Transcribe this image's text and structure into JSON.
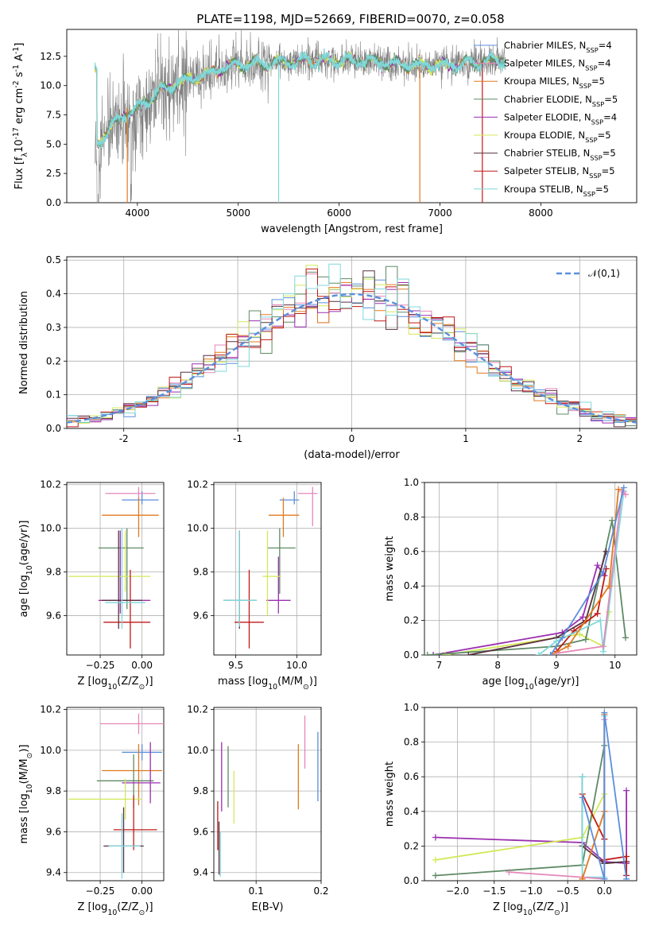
{
  "figure": {
    "title": "PLATE=1198, MJD=52669, FIBERID=0070, z=0.058"
  },
  "models": [
    {
      "name": "Chabrier MILES, N$_{SSP}$=4",
      "color": "#5b8fdc"
    },
    {
      "name": "Salpeter MILES, N$_{SSP}$=4",
      "color": "#e587b9"
    },
    {
      "name": "Kroupa MILES, N$_{SSP}$=5",
      "color": "#e07a1f"
    },
    {
      "name": "Chabrier ELODIE, N$_{SSP}$=5",
      "color": "#5f8a66"
    },
    {
      "name": "Salpeter ELODIE, N$_{SSP}$=4",
      "color": "#9b2fb0"
    },
    {
      "name": "Kroupa ELODIE, N$_{SSP}$=5",
      "color": "#d4e85a"
    },
    {
      "name": "Chabrier STELIB, N$_{SSP}$=5",
      "color": "#5a3040"
    },
    {
      "name": "Salpeter STELIB, N$_{SSP}$=5",
      "color": "#c01818"
    },
    {
      "name": "Kroupa STELIB, N$_{SSP}$=5",
      "color": "#7fd8dc"
    }
  ],
  "chart_data": [
    {
      "id": "spectrum",
      "type": "line",
      "xlabel": "wavelength [Angstrom, rest frame]",
      "ylabel": "Flux [f$_\\lambda$10$^{-17}$ erg cm$^{-2}$ s$^{-1}$ A$^{-1}$]",
      "xlim": [
        3300,
        8950
      ],
      "ylim": [
        0,
        14.8
      ],
      "xticks": [
        4000,
        5000,
        6000,
        7000,
        8000
      ],
      "yticks": [
        0.0,
        2.5,
        5.0,
        7.5,
        10.0,
        12.5
      ],
      "ytick_labels": [
        "0.0",
        "2.5",
        "5.0",
        "7.5",
        "10.0",
        "12.5"
      ],
      "data_color": "#808080",
      "continuum": {
        "x": [
          3600,
          3700,
          3850,
          3950,
          4050,
          4200,
          4350,
          4500,
          4700,
          4850,
          5000,
          5200,
          5500,
          5800,
          6100,
          6400,
          6800,
          7200,
          7600,
          8000,
          8400,
          8900
        ],
        "y": [
          5.0,
          6.1,
          7.5,
          7.7,
          8.4,
          9.5,
          10.0,
          10.5,
          11.0,
          11.5,
          11.8,
          11.9,
          12.0,
          12.2,
          12.1,
          12.0,
          11.7,
          11.8,
          12.2,
          11.8,
          11.4,
          11.1
        ]
      },
      "drop_lines": [
        {
          "x": 3900,
          "y": 8.1,
          "color": "#e07a1f"
        },
        {
          "x": 5400,
          "y": 11.9,
          "color": "#7fd8dc"
        },
        {
          "x": 6800,
          "y": 11.6,
          "color": "#e07a1f"
        },
        {
          "x": 7420,
          "y": 12.1,
          "color": "#c01818"
        }
      ],
      "legend": "upper right"
    },
    {
      "id": "residuals",
      "type": "histogram",
      "xlabel": "(data-model)/error",
      "ylabel": "Normed distribution",
      "xlim": [
        -2.5,
        2.5
      ],
      "ylim": [
        0,
        0.51
      ],
      "xticks": [
        -2,
        -1,
        0,
        1,
        2
      ],
      "yticks": [
        0.0,
        0.1,
        0.2,
        0.3,
        0.4,
        0.5
      ],
      "ytick_labels": [
        "0.0",
        "0.1",
        "0.2",
        "0.3",
        "0.4",
        "0.5"
      ],
      "bin_width": 0.1,
      "reference_curve": {
        "name": "$\\mathcal{N}(0,1)$",
        "color": "#5b8fdc",
        "style": "dashed"
      },
      "legend": "upper right"
    },
    {
      "id": "age_vs_Z",
      "type": "errorbar",
      "xlabel": "Z [log$_{10}$(Z/Z$_\\odot$)]",
      "ylabel": "age  [log$_{10}$(age/yr)]",
      "xlim": [
        -0.45,
        0.13
      ],
      "ylim": [
        9.42,
        10.21
      ],
      "xticks": [
        -0.25,
        0.0
      ],
      "xtick_labels": [
        "−0.25",
        "0.00"
      ],
      "yticks": [
        9.6,
        9.8,
        10.0,
        10.2
      ],
      "ytick_labels": [
        "9.6",
        "9.8",
        "10.0",
        "10.2"
      ],
      "points": [
        {
          "x": 0.0,
          "y": 10.13,
          "xerr": [
            0.12,
            0.1
          ],
          "yerr": [
            0.02,
            0.04
          ],
          "color": "#5b8fdc"
        },
        {
          "x": -0.02,
          "y": 10.16,
          "xerr": [
            0.2,
            0.1
          ],
          "yerr": [
            0.03,
            0.03
          ],
          "color": "#e587b9"
        },
        {
          "x": -0.02,
          "y": 10.06,
          "xerr": [
            0.22,
            0.12
          ],
          "yerr": [
            0.1,
            0.08
          ],
          "color": "#e07a1f"
        },
        {
          "x": -0.09,
          "y": 9.91,
          "xerr": [
            0.17,
            0.1
          ],
          "yerr": [
            0.28,
            0.09
          ],
          "color": "#5f8a66"
        },
        {
          "x": -0.13,
          "y": 9.67,
          "xerr": [
            0.13,
            0.18
          ],
          "yerr": [
            0.06,
            0.32
          ],
          "color": "#9b2fb0"
        },
        {
          "x": -0.1,
          "y": 9.78,
          "xerr": [
            0.34,
            0.15
          ],
          "yerr": [
            0.07,
            0.21
          ],
          "color": "#d4e85a"
        },
        {
          "x": -0.14,
          "y": 9.67,
          "xerr": [
            0.1,
            0.14
          ],
          "yerr": [
            0.13,
            0.32
          ],
          "color": "#5a3040"
        },
        {
          "x": -0.07,
          "y": 9.57,
          "xerr": [
            0.16,
            0.12
          ],
          "yerr": [
            0.12,
            0.24
          ],
          "color": "#c01818"
        },
        {
          "x": -0.12,
          "y": 9.66,
          "xerr": [
            0.1,
            0.14
          ],
          "yerr": [
            0.12,
            0.34
          ],
          "color": "#7fd8dc"
        }
      ]
    },
    {
      "id": "age_vs_mass",
      "type": "errorbar",
      "xlabel": "mass [log$_{10}$(M/M$_\\odot$)]",
      "ylabel": "",
      "xlim": [
        9.32,
        10.2
      ],
      "ylim": [
        9.42,
        10.21
      ],
      "xticks": [
        9.5,
        10.0
      ],
      "xtick_labels": [
        "9.5",
        "10.0"
      ],
      "yticks": [
        9.6,
        9.8,
        10.0,
        10.2
      ],
      "ytick_labels": [
        "9.6",
        "9.8",
        "10.0",
        "10.2"
      ],
      "points": [
        {
          "x": 9.98,
          "y": 10.13,
          "xerr": [
            0.12,
            0.04
          ],
          "yerr": [
            0.02,
            0.04
          ],
          "color": "#5b8fdc"
        },
        {
          "x": 10.13,
          "y": 10.16,
          "xerr": [
            0.12,
            0.04
          ],
          "yerr": [
            0.15,
            0.03
          ],
          "color": "#e587b9"
        },
        {
          "x": 9.89,
          "y": 10.06,
          "xerr": [
            0.12,
            0.13
          ],
          "yerr": [
            0.1,
            0.08
          ],
          "color": "#e07a1f"
        },
        {
          "x": 9.86,
          "y": 9.91,
          "xerr": [
            0.1,
            0.13
          ],
          "yerr": [
            0.21,
            0.09
          ],
          "color": "#5f8a66"
        },
        {
          "x": 9.85,
          "y": 9.67,
          "xerr": [
            0.1,
            0.1
          ],
          "yerr": [
            0.06,
            0.2
          ],
          "color": "#9b2fb0"
        },
        {
          "x": 9.76,
          "y": 9.78,
          "xerr": [
            0.04,
            0.11
          ],
          "yerr": [
            0.18,
            0.21
          ],
          "color": "#d4e85a"
        },
        {
          "x": 9.53,
          "y": 9.67,
          "xerr": [
            0.13,
            0.14
          ],
          "yerr": [
            0.13,
            0.32
          ],
          "color": "#5a3040"
        },
        {
          "x": 9.61,
          "y": 9.57,
          "xerr": [
            0.12,
            0.12
          ],
          "yerr": [
            0.12,
            0.24
          ],
          "color": "#c01818"
        },
        {
          "x": 9.53,
          "y": 9.67,
          "xerr": [
            0.13,
            0.14
          ],
          "yerr": [
            0.12,
            0.32
          ],
          "color": "#7fd8dc"
        }
      ]
    },
    {
      "id": "weight_vs_age",
      "type": "line",
      "xlabel": "age  [log$_{10}$(age/yr)]",
      "ylabel": "mass weight",
      "xlim": [
        6.75,
        10.37
      ],
      "ylim": [
        0,
        1.0
      ],
      "xticks": [
        7,
        8,
        9,
        10
      ],
      "xtick_labels": [
        "7",
        "8",
        "9",
        "10"
      ],
      "yticks": [
        0.0,
        0.2,
        0.4,
        0.6,
        0.8,
        1.0
      ],
      "ytick_labels": [
        "0.0",
        "0.2",
        "0.4",
        "0.6",
        "0.8",
        "1.0"
      ],
      "series": [
        {
          "color": "#9b2fb0",
          "x": [
            6.9,
            9.1,
            9.45,
            9.7,
            9.82
          ],
          "y": [
            0.0,
            0.13,
            0.22,
            0.52,
            0.46
          ]
        },
        {
          "color": "#d4e85a",
          "x": [
            7.1,
            9.0,
            9.4,
            9.8,
            9.9
          ],
          "y": [
            0.0,
            0.1,
            0.12,
            0.05,
            0.25
          ]
        },
        {
          "color": "#5f8a66",
          "x": [
            6.8,
            9.0,
            9.5,
            9.95,
            10.18
          ],
          "y": [
            0.0,
            0.05,
            0.09,
            0.78,
            0.1
          ]
        },
        {
          "color": "#5a3040",
          "x": [
            7.5,
            9.0,
            9.5,
            9.85
          ],
          "y": [
            0.0,
            0.1,
            0.2,
            0.6
          ]
        },
        {
          "color": "#c01818",
          "x": [
            9.0,
            9.3,
            9.7,
            9.85
          ],
          "y": [
            0.02,
            0.14,
            0.24,
            0.5
          ]
        },
        {
          "color": "#7fd8dc",
          "x": [
            8.7,
            9.0,
            9.75,
            9.8,
            10.15
          ],
          "y": [
            0.0,
            0.08,
            0.2,
            0.02,
            0.95
          ]
        },
        {
          "color": "#e587b9",
          "x": [
            9.0,
            9.8,
            10.12,
            10.18
          ],
          "y": [
            0.01,
            0.05,
            0.95,
            0.93
          ]
        },
        {
          "color": "#e07a1f",
          "x": [
            8.9,
            9.2,
            9.9,
            10.06
          ],
          "y": [
            0.0,
            0.05,
            0.4,
            0.96
          ]
        },
        {
          "color": "#5b8fdc",
          "x": [
            8.9,
            9.1,
            9.8,
            10.15
          ],
          "y": [
            0.0,
            0.1,
            0.48,
            0.97
          ]
        }
      ]
    },
    {
      "id": "mass_vs_Z",
      "type": "errorbar",
      "xlabel": "Z [log$_{10}$(Z/Z$_\\odot$)]",
      "ylabel": "mass [log$_{10}$(M/M$_\\odot$)]",
      "xlim": [
        -0.45,
        0.13
      ],
      "ylim": [
        9.36,
        10.21
      ],
      "xticks": [
        -0.25,
        0.0
      ],
      "xtick_labels": [
        "−0.25",
        "0.00"
      ],
      "yticks": [
        9.4,
        9.6,
        9.8,
        10.0,
        10.2
      ],
      "ytick_labels": [
        "9.4",
        "9.6",
        "9.8",
        "10.0",
        "10.2"
      ],
      "points": [
        {
          "x": -0.02,
          "y": 10.13,
          "xerr": [
            0.23,
            0.15
          ],
          "yerr": [
            0.05,
            0.05
          ],
          "color": "#e587b9"
        },
        {
          "x": 0.0,
          "y": 9.99,
          "xerr": [
            0.12,
            0.12
          ],
          "yerr": [
            0.04,
            0.04
          ],
          "color": "#5b8fdc"
        },
        {
          "x": -0.02,
          "y": 9.9,
          "xerr": [
            0.22,
            0.14
          ],
          "yerr": [
            0.17,
            0.13
          ],
          "color": "#e07a1f"
        },
        {
          "x": -0.05,
          "y": 9.85,
          "xerr": [
            0.22,
            0.12
          ],
          "yerr": [
            0.13,
            0.13
          ],
          "color": "#5f8a66"
        },
        {
          "x": 0.05,
          "y": 9.84,
          "xerr": [
            0.17,
            0.06
          ],
          "yerr": [
            0.1,
            0.2
          ],
          "color": "#9b2fb0"
        },
        {
          "x": -0.1,
          "y": 9.76,
          "xerr": [
            0.34,
            0.1
          ],
          "yerr": [
            0.1,
            0.1
          ],
          "color": "#d4e85a"
        },
        {
          "x": -0.11,
          "y": 9.53,
          "xerr": [
            0.12,
            0.12
          ],
          "yerr": [
            0.13,
            0.19
          ],
          "color": "#5a3040"
        },
        {
          "x": -0.05,
          "y": 9.61,
          "xerr": [
            0.12,
            0.14
          ],
          "yerr": [
            0.1,
            0.17
          ],
          "color": "#c01818"
        },
        {
          "x": -0.12,
          "y": 9.53,
          "xerr": [
            0.08,
            0.11
          ],
          "yerr": [
            0.16,
            0.16
          ],
          "color": "#7fd8dc"
        }
      ]
    },
    {
      "id": "mass_vs_ebv",
      "type": "errorbar",
      "xlabel": "E(B-V)",
      "ylabel": "",
      "xlim": [
        0.035,
        0.2
      ],
      "ylim": [
        9.36,
        10.21
      ],
      "xticks": [
        0.1,
        0.2
      ],
      "xtick_labels": [
        "0.1",
        "0.2"
      ],
      "yticks": [
        9.4,
        9.6,
        9.8,
        10.0,
        10.2
      ],
      "ytick_labels": [
        "9.4",
        "9.6",
        "9.8",
        "10.0",
        "10.2"
      ],
      "points": [
        {
          "x": 0.195,
          "y": 9.92,
          "yerr": [
            0.17,
            0.17
          ],
          "color": "#5b8fdc"
        },
        {
          "x": 0.175,
          "y": 10.04,
          "yerr": [
            0.13,
            0.13
          ],
          "color": "#e587b9"
        },
        {
          "x": 0.165,
          "y": 9.87,
          "yerr": [
            0.16,
            0.16
          ],
          "color": "#e07a1f"
        },
        {
          "x": 0.057,
          "y": 9.87,
          "yerr": [
            0.15,
            0.15
          ],
          "color": "#5f8a66"
        },
        {
          "x": 0.047,
          "y": 9.87,
          "yerr": [
            0.17,
            0.17
          ],
          "color": "#9b2fb0"
        },
        {
          "x": 0.066,
          "y": 9.77,
          "yerr": [
            0.13,
            0.13
          ],
          "color": "#d4e85a"
        },
        {
          "x": 0.043,
          "y": 9.52,
          "yerr": [
            0.13,
            0.13
          ],
          "color": "#5a3040"
        },
        {
          "x": 0.041,
          "y": 9.63,
          "yerr": [
            0.12,
            0.12
          ],
          "color": "#c01818"
        },
        {
          "x": 0.045,
          "y": 9.49,
          "yerr": [
            0.11,
            0.11
          ],
          "color": "#7fd8dc"
        }
      ]
    },
    {
      "id": "weight_vs_Z",
      "type": "line",
      "xlabel": "Z [log$_{10}$(Z/Z$_\\odot$)]",
      "ylabel": "mass weight",
      "xlim": [
        -2.45,
        0.44
      ],
      "ylim": [
        0,
        1.0
      ],
      "xticks": [
        -2.0,
        -1.5,
        -1.0,
        -0.5,
        0.0
      ],
      "xtick_labels": [
        "−2.0",
        "−1.5",
        "−1.0",
        "−0.5",
        "0.0"
      ],
      "yticks": [
        0.0,
        0.2,
        0.4,
        0.6,
        0.8,
        1.0
      ],
      "ytick_labels": [
        "0.0",
        "0.2",
        "0.4",
        "0.6",
        "0.8",
        "1.0"
      ],
      "series": [
        {
          "color": "#9b2fb0",
          "x": [
            -2.3,
            -0.3,
            0.0,
            0.3,
            0.3
          ],
          "y": [
            0.25,
            0.22,
            0.11,
            0.1,
            0.52
          ]
        },
        {
          "color": "#d4e85a",
          "x": [
            -2.3,
            -0.3,
            0.0,
            0.0
          ],
          "y": [
            0.12,
            0.25,
            0.5,
            0.1
          ]
        },
        {
          "color": "#5f8a66",
          "x": [
            -2.3,
            -0.3,
            0.0,
            0.0,
            0.3
          ],
          "y": [
            0.03,
            0.09,
            0.78,
            0.1,
            0.11
          ]
        },
        {
          "color": "#5a3040",
          "x": [
            -0.3,
            -0.3,
            0.0,
            0.3
          ],
          "y": [
            0.6,
            0.2,
            0.1,
            0.11
          ]
        },
        {
          "color": "#c01818",
          "x": [
            -0.3,
            0.0,
            0.0,
            0.3,
            0.3
          ],
          "y": [
            0.5,
            0.24,
            0.12,
            0.14,
            0.03
          ]
        },
        {
          "color": "#7fd8dc",
          "x": [
            -0.3,
            -0.3,
            0.0,
            0.0
          ],
          "y": [
            0.6,
            0.02,
            0.02,
            0.95
          ]
        },
        {
          "color": "#e587b9",
          "x": [
            -1.3,
            -0.3,
            0.0,
            0.0
          ],
          "y": [
            0.05,
            0.02,
            0.01,
            0.93
          ]
        },
        {
          "color": "#e07a1f",
          "x": [
            -0.3,
            0.0,
            0.0
          ],
          "y": [
            0.01,
            0.4,
            0.96
          ]
        },
        {
          "color": "#5b8fdc",
          "x": [
            -0.3,
            0.0,
            0.0,
            0.3
          ],
          "y": [
            0.48,
            0.01,
            0.97,
            0.01
          ]
        }
      ]
    }
  ]
}
